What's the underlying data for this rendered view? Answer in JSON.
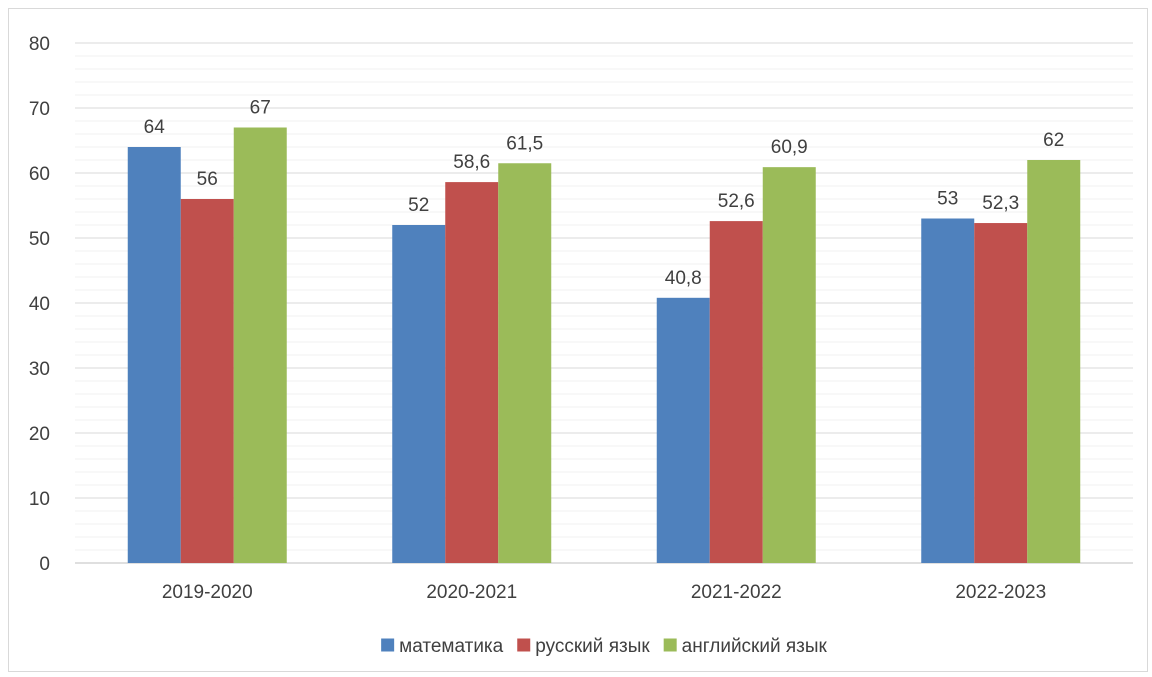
{
  "chart_data": {
    "type": "bar",
    "title": "",
    "xlabel": "",
    "ylabel": "",
    "categories": [
      "2019-2020",
      "2020-2021",
      "2021-2022",
      "2022-2023"
    ],
    "series": [
      {
        "name": "математика",
        "color": "#4f81bd",
        "values": [
          64,
          52,
          40.8,
          53
        ],
        "labels": [
          "64",
          "52",
          "40,8",
          "53"
        ]
      },
      {
        "name": "русский язык",
        "color": "#c0504d",
        "values": [
          56,
          58.6,
          52.6,
          52.3
        ],
        "labels": [
          "56",
          "58,6",
          "52,6",
          "52,3"
        ]
      },
      {
        "name": "английский язык",
        "color": "#9bbb59",
        "values": [
          67,
          61.5,
          60.9,
          62
        ],
        "labels": [
          "67",
          "61,5",
          "60,9",
          "62"
        ]
      }
    ],
    "ylim": [
      0,
      80
    ],
    "yticks": [
      0,
      10,
      20,
      30,
      40,
      50,
      60,
      70,
      80
    ],
    "minor_gridlines": true,
    "legend": "bottom",
    "grid": true
  }
}
